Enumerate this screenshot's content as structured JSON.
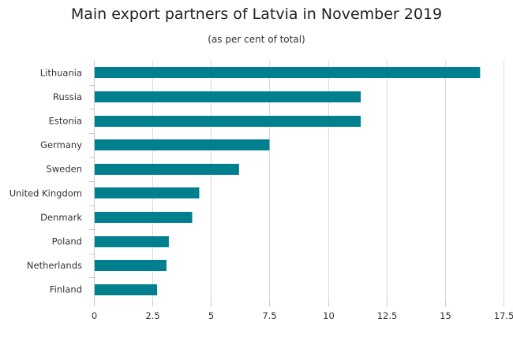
{
  "chart_data": {
    "type": "bar",
    "orientation": "horizontal",
    "title": "Main export partners of Latvia in November 2019",
    "subtitle": "(as per cent of total)",
    "xlabel": "",
    "ylabel": "",
    "categories": [
      "Lithuania",
      "Russia",
      "Estonia",
      "Germany",
      "Sweden",
      "United Kingdom",
      "Denmark",
      "Poland",
      "Netherlands",
      "Finland"
    ],
    "values": [
      16.5,
      11.4,
      11.4,
      7.5,
      6.2,
      4.5,
      4.2,
      3.2,
      3.1,
      2.7
    ],
    "xlim": [
      0,
      17.5
    ],
    "xticks": [
      0,
      2.5,
      5,
      7.5,
      10,
      12.5,
      15,
      17.5
    ],
    "xtick_labels": [
      "0",
      "2.5",
      "5",
      "7.5",
      "10",
      "12.5",
      "15",
      "17.5"
    ],
    "grid": "vertical",
    "legend": "none",
    "colors": {
      "bar": "#00808f",
      "grid": "#d9d9d9",
      "axis": "#c6c6c6"
    }
  }
}
